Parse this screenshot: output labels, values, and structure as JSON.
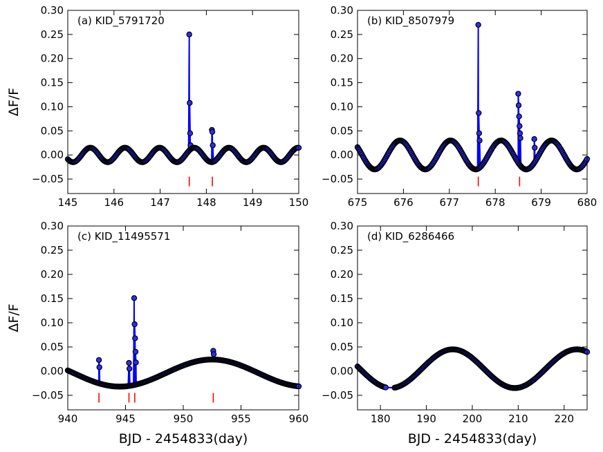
{
  "chart_data": [
    {
      "id": "a",
      "type": "line",
      "title": "(a) KID_5791720",
      "xlabel": "",
      "ylabel": "ΔF/F",
      "xlim": [
        145,
        150
      ],
      "ylim": [
        -0.08,
        0.3
      ],
      "xticks": [
        145,
        146,
        147,
        148,
        149,
        150
      ],
      "xticklabels": [
        "145",
        "146",
        "147",
        "148",
        "149",
        "150"
      ],
      "yticks": [
        -0.05,
        0.0,
        0.05,
        0.1,
        0.15,
        0.2,
        0.25,
        0.3
      ],
      "yticklabels": [
        "−0.05",
        "0.00",
        "0.05",
        "0.10",
        "0.15",
        "0.20",
        "0.25",
        "0.30"
      ],
      "baseline": {
        "kind": "sine",
        "amp": 0.015,
        "period": 0.75,
        "phase": 145.3,
        "offset": 0.0
      },
      "flares": [
        {
          "t": 147.63,
          "peak": 0.25,
          "points": [
            0.25,
            0.108,
            0.045,
            0.02
          ]
        },
        {
          "t": 148.12,
          "peak": 0.052,
          "points": [
            0.052,
            0.048,
            0.02
          ]
        }
      ],
      "marker_times": [
        147.63,
        148.13
      ]
    },
    {
      "id": "b",
      "type": "line",
      "title": "(b) KID_8507979",
      "xlabel": "",
      "ylabel": "",
      "xlim": [
        675,
        680
      ],
      "ylim": [
        -0.08,
        0.3
      ],
      "xticks": [
        675,
        676,
        677,
        678,
        679,
        680
      ],
      "xticklabels": [
        "675",
        "676",
        "677",
        "678",
        "679",
        "680"
      ],
      "yticks": [
        -0.05,
        0.0,
        0.05,
        0.1,
        0.15,
        0.2,
        0.25,
        0.3
      ],
      "yticklabels": [
        "−0.05",
        "0.00",
        "0.05",
        "0.10",
        "0.15",
        "0.20",
        "0.25",
        "0.30"
      ],
      "baseline": {
        "kind": "sine",
        "amp": 0.03,
        "period": 1.1,
        "phase": 675.65,
        "offset": 0.0
      },
      "flares": [
        {
          "t": 677.63,
          "peak": 0.27,
          "points": [
            0.27,
            0.087,
            0.045,
            0.03
          ]
        },
        {
          "t": 678.5,
          "peak": 0.127,
          "points": [
            0.127,
            0.103,
            0.08,
            0.06,
            0.045,
            0.035
          ]
        },
        {
          "t": 678.85,
          "peak": 0.033,
          "points": [
            0.033,
            0.015
          ]
        }
      ],
      "marker_times": [
        677.63,
        678.53
      ]
    },
    {
      "id": "c",
      "type": "line",
      "title": "(c) KID_11495571",
      "xlabel": "BJD - 2454833(day)",
      "ylabel": "ΔF/F",
      "xlim": [
        940,
        960
      ],
      "ylim": [
        -0.08,
        0.3
      ],
      "xticks": [
        940,
        945,
        950,
        955,
        960
      ],
      "xticklabels": [
        "940",
        "945",
        "950",
        "955",
        "960"
      ],
      "yticks": [
        -0.05,
        0.0,
        0.05,
        0.1,
        0.15,
        0.2,
        0.25,
        0.3
      ],
      "yticklabels": [
        "−0.05",
        "0.00",
        "0.05",
        "0.10",
        "0.15",
        "0.20",
        "0.25",
        "0.30"
      ],
      "baseline": {
        "kind": "sine",
        "amp": 0.028,
        "period": 16.0,
        "phase": 948.5,
        "offset": -0.004
      },
      "flares": [
        {
          "t": 942.7,
          "peak": 0.023,
          "points": [
            0.023,
            0.008
          ]
        },
        {
          "t": 945.3,
          "peak": 0.017,
          "points": [
            0.017,
            0.005
          ]
        },
        {
          "t": 945.75,
          "peak": 0.151,
          "points": [
            0.151,
            0.097,
            0.068,
            0.04,
            0.018
          ]
        },
        {
          "t": 952.6,
          "peak": 0.042,
          "points": [
            0.042,
            0.035
          ]
        }
      ],
      "marker_times": [
        942.7,
        945.3,
        945.8,
        952.6
      ]
    },
    {
      "id": "d",
      "type": "line",
      "title": "(d) KID_6286466",
      "xlabel": "BJD - 2454833(day)",
      "ylabel": "",
      "xlim": [
        175,
        225
      ],
      "ylim": [
        -0.08,
        0.3
      ],
      "xticks": [
        180,
        190,
        200,
        210,
        220
      ],
      "xticklabels": [
        "180",
        "190",
        "200",
        "210",
        "220"
      ],
      "yticks": [
        -0.05,
        0.0,
        0.05,
        0.1,
        0.15,
        0.2,
        0.25,
        0.3
      ],
      "yticklabels": [
        "−0.05",
        "0.00",
        "0.05",
        "0.10",
        "0.15",
        "0.20",
        "0.25",
        "0.30"
      ],
      "baseline": {
        "kind": "sine",
        "amp": 0.04,
        "period": 27.0,
        "phase": 189.0,
        "offset": 0.005
      },
      "gap": [
        181.3,
        183.0
      ],
      "flares": [],
      "marker_times": []
    }
  ]
}
